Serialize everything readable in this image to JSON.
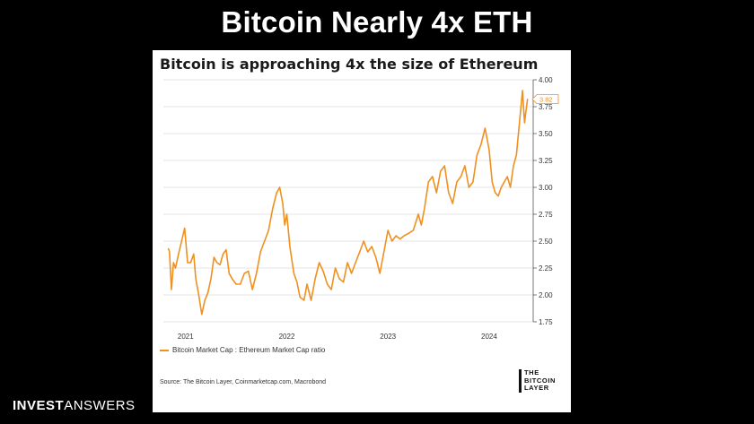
{
  "slide": {
    "title": "Bitcoin Nearly 4x ETH"
  },
  "brand": {
    "part1": "INVEST",
    "part2": "ANSWERS"
  },
  "logo": {
    "text": "THE BITCOIN LAYER"
  },
  "chart_data": {
    "type": "line",
    "title": "Bitcoin is approaching 4x the size of Ethereum",
    "ylim": [
      1.75,
      4.0
    ],
    "y_ticks": [
      "4.00",
      "3.75",
      "3.50",
      "3.25",
      "3.00",
      "2.75",
      "2.50",
      "2.25",
      "2.00",
      "1.75"
    ],
    "x_ticks": [
      {
        "label": "2021",
        "x": 2021.0
      },
      {
        "label": "2022",
        "x": 2022.0
      },
      {
        "label": "2023",
        "x": 2023.0
      },
      {
        "label": "2024",
        "x": 2024.0
      }
    ],
    "xlim": [
      2020.78,
      2024.4
    ],
    "grid": true,
    "legend": "bottom-left",
    "last_value_label": "3.82",
    "series": [
      {
        "name": "Bitcoin Market Cap : Ethereum Market Cap ratio",
        "color": "#f0901e",
        "x": [
          2020.83,
          2020.84,
          2020.86,
          2020.88,
          2020.9,
          2020.93,
          2020.96,
          2020.99,
          2021.02,
          2021.05,
          2021.08,
          2021.1,
          2021.13,
          2021.16,
          2021.19,
          2021.22,
          2021.25,
          2021.28,
          2021.31,
          2021.34,
          2021.37,
          2021.4,
          2021.43,
          2021.46,
          2021.5,
          2021.54,
          2021.58,
          2021.62,
          2021.66,
          2021.7,
          2021.74,
          2021.78,
          2021.82,
          2021.86,
          2021.9,
          2021.93,
          2021.96,
          2021.98,
          2022.0,
          2022.03,
          2022.07,
          2022.1,
          2022.13,
          2022.17,
          2022.2,
          2022.24,
          2022.28,
          2022.32,
          2022.36,
          2022.4,
          2022.44,
          2022.48,
          2022.52,
          2022.56,
          2022.6,
          2022.64,
          2022.68,
          2022.72,
          2022.76,
          2022.8,
          2022.84,
          2022.88,
          2022.92,
          2022.96,
          2023.0,
          2023.04,
          2023.08,
          2023.12,
          2023.16,
          2023.2,
          2023.25,
          2023.3,
          2023.33,
          2023.36,
          2023.4,
          2023.44,
          2023.48,
          2023.52,
          2023.56,
          2023.6,
          2023.64,
          2023.68,
          2023.72,
          2023.76,
          2023.8,
          2023.84,
          2023.88,
          2023.92,
          2023.96,
          2024.0,
          2024.03,
          2024.06,
          2024.09,
          2024.12,
          2024.15,
          2024.18,
          2024.21,
          2024.24,
          2024.27,
          2024.3,
          2024.33,
          2024.34,
          2024.35,
          2024.36,
          2024.38
        ],
        "y": [
          2.43,
          2.4,
          2.05,
          2.3,
          2.25,
          2.38,
          2.5,
          2.62,
          2.3,
          2.3,
          2.38,
          2.15,
          2.0,
          1.82,
          1.95,
          2.02,
          2.15,
          2.35,
          2.3,
          2.28,
          2.38,
          2.42,
          2.2,
          2.15,
          2.1,
          2.1,
          2.2,
          2.22,
          2.05,
          2.2,
          2.4,
          2.5,
          2.6,
          2.8,
          2.95,
          3.0,
          2.85,
          2.65,
          2.75,
          2.45,
          2.2,
          2.12,
          1.98,
          1.95,
          2.1,
          1.95,
          2.15,
          2.3,
          2.22,
          2.1,
          2.05,
          2.25,
          2.15,
          2.12,
          2.3,
          2.2,
          2.3,
          2.4,
          2.5,
          2.4,
          2.45,
          2.35,
          2.2,
          2.4,
          2.6,
          2.5,
          2.55,
          2.52,
          2.55,
          2.57,
          2.6,
          2.75,
          2.65,
          2.8,
          3.05,
          3.1,
          2.95,
          3.15,
          3.2,
          2.95,
          2.85,
          3.05,
          3.1,
          3.2,
          3.0,
          3.05,
          3.3,
          3.4,
          3.55,
          3.35,
          3.05,
          2.95,
          2.92,
          3.0,
          3.05,
          3.1,
          3.0,
          3.2,
          3.3,
          3.6,
          3.9,
          3.75,
          3.6,
          3.68,
          3.82
        ]
      }
    ]
  },
  "footer": {
    "legend_label": "Bitcoin Market Cap : Ethereum Market Cap ratio",
    "source": "Source: The Bitcoin Layer, Coinmarketcap.com, Macrobond"
  }
}
